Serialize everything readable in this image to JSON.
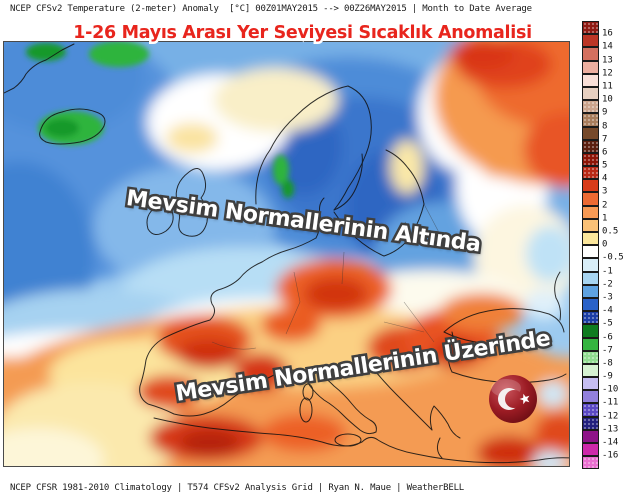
{
  "header": {
    "text": "NCEP CFSv2 Temperature (2-meter) Anomaly  [°C] 00Z01MAY2015 --> 00Z26MAY2015 | Month to Date Average"
  },
  "title": {
    "text": "1-26 Mayıs Arası Yer Seviyesi Sıcaklık Anomalisi",
    "color": "#e8251d"
  },
  "overlays": {
    "below_normal": "Mevsim Normallerinin Altında",
    "above_normal": "Mevsim Normallerinin Üzerinde"
  },
  "footer": {
    "text": "NCEP CFSR 1981-2010 Climatology | T574 CFSv2 Analysis Grid | Ryan N. Maue | WeatherBELL"
  },
  "flag": {
    "name": "turkey-flag-badge"
  },
  "colorbar": {
    "orientation": "vertical",
    "cells": [
      {
        "color": "#8f1a12",
        "label": "16",
        "hatch": true
      },
      {
        "color": "#bc3626",
        "label": "14",
        "hatch": false
      },
      {
        "color": "#d4705f",
        "label": "13",
        "hatch": false
      },
      {
        "color": "#edafa0",
        "label": "12",
        "hatch": false
      },
      {
        "color": "#f9e0d8",
        "label": "11",
        "hatch": false
      },
      {
        "color": "#e7d0c1",
        "label": "10",
        "hatch": false
      },
      {
        "color": "#cba48c",
        "label": "9",
        "hatch": true
      },
      {
        "color": "#a87d5c",
        "label": "8",
        "hatch": true
      },
      {
        "color": "#76492a",
        "label": "7",
        "hatch": false
      },
      {
        "color": "#5a1e0e",
        "label": "6",
        "hatch": true
      },
      {
        "color": "#8c1406",
        "label": "5",
        "hatch": true
      },
      {
        "color": "#b82815",
        "label": "4",
        "hatch": true
      },
      {
        "color": "#d83c1a",
        "label": "3",
        "hatch": false
      },
      {
        "color": "#ec6a33",
        "label": "2",
        "hatch": false
      },
      {
        "color": "#f79a55",
        "label": "1",
        "hatch": false
      },
      {
        "color": "#fac177",
        "label": "0.5",
        "hatch": false
      },
      {
        "color": "#fce79c",
        "label": "0",
        "hatch": false
      },
      {
        "color": "#ffffff",
        "label": "-0.5",
        "hatch": false
      },
      {
        "color": "#d9eef8",
        "label": "-1",
        "hatch": false
      },
      {
        "color": "#a8d5f1",
        "label": "-2",
        "hatch": false
      },
      {
        "color": "#5fa3e2",
        "label": "-3",
        "hatch": false
      },
      {
        "color": "#2a62c8",
        "label": "-4",
        "hatch": false
      },
      {
        "color": "#1c3da5",
        "label": "-5",
        "hatch": true
      },
      {
        "color": "#0f7c20",
        "label": "-6",
        "hatch": false
      },
      {
        "color": "#34b440",
        "label": "-7",
        "hatch": false
      },
      {
        "color": "#90dc90",
        "label": "-8",
        "hatch": true
      },
      {
        "color": "#d6f2d2",
        "label": "-9",
        "hatch": false
      },
      {
        "color": "#c6bef2",
        "label": "-10",
        "hatch": false
      },
      {
        "color": "#9280dc",
        "label": "-11",
        "hatch": false
      },
      {
        "color": "#5a48c4",
        "label": "-12",
        "hatch": true
      },
      {
        "color": "#23207e",
        "label": "-13",
        "hatch": true
      },
      {
        "color": "#8e1488",
        "label": "-14",
        "hatch": false
      },
      {
        "color": "#ce2aaa",
        "label": "-16",
        "hatch": false
      },
      {
        "color": "#ea6ed0",
        "label": "",
        "hatch": true
      }
    ]
  }
}
